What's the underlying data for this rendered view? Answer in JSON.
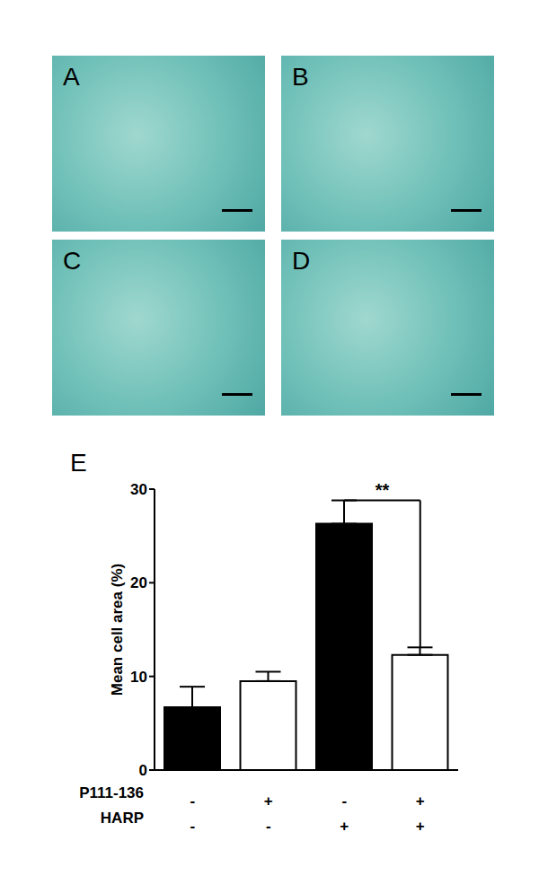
{
  "figure": {
    "panels": [
      "A",
      "B",
      "C",
      "D"
    ]
  },
  "chart_data": {
    "type": "bar",
    "panel_label": "E",
    "y_label": "Mean cell area (%)",
    "categories": [
      null,
      null,
      null,
      null
    ],
    "values": [
      6.7,
      9.5,
      26.3,
      12.3
    ],
    "errors": [
      2.2,
      1.0,
      2.5,
      0.8
    ],
    "colors": [
      "#000000",
      "#ffffff",
      "#000000",
      "#ffffff"
    ],
    "ylim": [
      0,
      30
    ],
    "yticks": [
      0,
      10,
      20,
      30
    ],
    "conditions": [
      {
        "name": "P111-136",
        "values": [
          "-",
          "+",
          "-",
          "+"
        ]
      },
      {
        "name": "HARP",
        "values": [
          "-",
          "-",
          "+",
          "+"
        ]
      }
    ],
    "annotations": [
      {
        "from": 2,
        "to": 3,
        "label": "**"
      }
    ]
  }
}
